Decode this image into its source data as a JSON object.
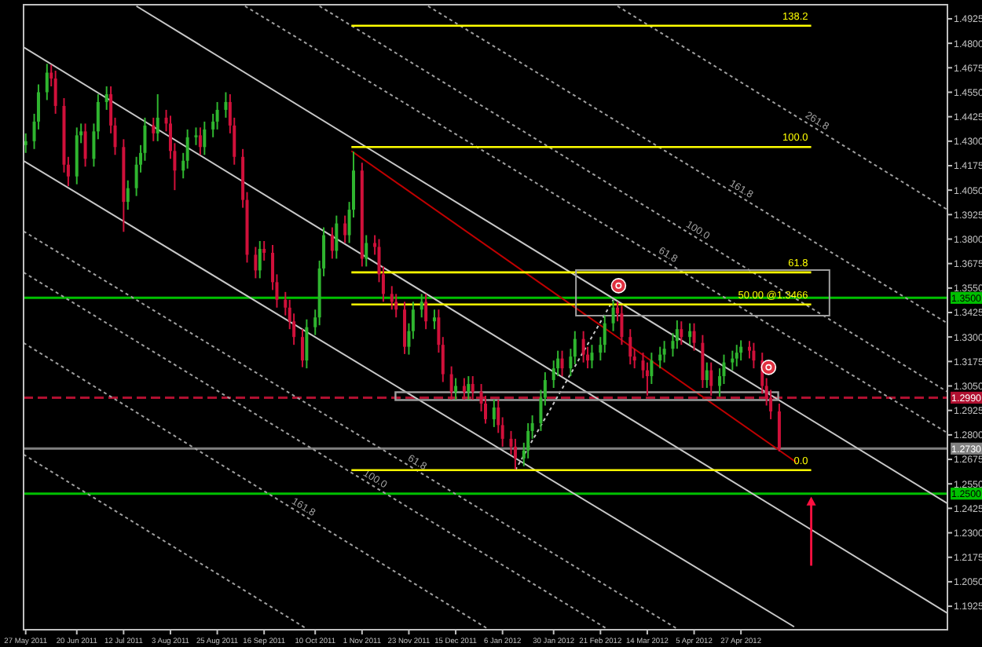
{
  "chart_data": {
    "type": "candlestick",
    "colors": [
      "#2fb52f",
      "#2fb52f",
      "#2fb52f",
      "#2fb52f",
      "#d0103a",
      "#d0103a",
      "#d0103a",
      "#d0103a",
      "#2fb52f",
      "#2fb52f",
      "#d0103a",
      "#2fb52f",
      "#2fb52f",
      "#2fb52f",
      "#d0103a",
      "#d0103a",
      "#d0103a",
      "#2fb52f",
      "#2fb52f",
      "#2fb52f",
      "#2fb52f",
      "#d0103a",
      "#2fb52f",
      "#d0103a",
      "#d0103a",
      "#d0103a",
      "#2fb52f",
      "#2fb52f",
      "#2fb52f",
      "#d0103a",
      "#2fb52f",
      "#2fb52f",
      "#2fb52f",
      "#2fb52f",
      "#d0103a",
      "#d0103a",
      "#d0103a",
      "#d0103a",
      "#d0103a",
      "#2fb52f",
      "#d0103a",
      "#d0103a",
      "#d0103a",
      "#d0103a",
      "#d0103a",
      "#d0103a",
      "#d0103a",
      "#2fb52f",
      "#2fb52f",
      "#2fb52f",
      "#2fb52f",
      "#d0103a",
      "#2fb52f",
      "#d0103a",
      "#2fb52f",
      "#2fb52f",
      "#d0103a",
      "#2fb52f",
      "#d0103a",
      "#d0103a",
      "#d0103a",
      "#d0103a",
      "#d0103a",
      "#d0103a",
      "#2fb52f",
      "#2fb52f",
      "#2fb52f",
      "#d0103a",
      "#2fb52f",
      "#d0103a",
      "#d0103a",
      "#d0103a",
      "#2fb52f",
      "#d0103a",
      "#2fb52f",
      "#d0103a",
      "#d0103a",
      "#d0103a",
      "#2fb52f",
      "#d0103a",
      "#d0103a",
      "#d0103a",
      "#d0103a",
      "#2fb52f",
      "#2fb52f",
      "#2fb52f",
      "#2fb52f",
      "#2fb52f",
      "#2fb52f",
      "#2fb52f",
      "#d0103a",
      "#2fb52f",
      "#2fb52f",
      "#d0103a",
      "#d0103a",
      "#2fb52f",
      "#2fb52f",
      "#2fb52f",
      "#2fb52f",
      "#d0103a",
      "#d0103a",
      "#d0103a",
      "#d0103a",
      "#d0103a",
      "#d0103a",
      "#2fb52f",
      "#2fb52f",
      "#2fb52f",
      "#2fb52f",
      "#2fb52f",
      "#d0103a",
      "#2fb52f",
      "#d0103a",
      "#d0103a",
      "#2fb52f",
      "#d0103a",
      "#2fb52f",
      "#2fb52f",
      "#2fb52f",
      "#2fb52f",
      "#2fb52f",
      "#d0103a",
      "#d0103a",
      "#d0103a",
      "#d0103a",
      "#d0103a",
      "#d0103a"
    ],
    "xlim": [
      "2011-05-26",
      "2012-08-02"
    ],
    "ylim": [
      1.1805,
      1.4997
    ],
    "xticks": [
      {
        "value": "2011-05-27",
        "label": "27 May 2011"
      },
      {
        "value": "2011-06-20",
        "label": "20 Jun 2011"
      },
      {
        "value": "2011-07-12",
        "label": "12 Jul 2011"
      },
      {
        "value": "2011-08-03",
        "label": "3 Aug 2011"
      },
      {
        "value": "2011-08-25",
        "label": "25 Aug 2011"
      },
      {
        "value": "2011-09-16",
        "label": "16 Sep 2011"
      },
      {
        "value": "2011-10-10",
        "label": "10 Oct 2011"
      },
      {
        "value": "2011-11-01",
        "label": "1 Nov 2011"
      },
      {
        "value": "2011-11-23",
        "label": "23 Nov 2011"
      },
      {
        "value": "2011-12-15",
        "label": "15 Dec 2011"
      },
      {
        "value": "2012-01-06",
        "label": "6 Jan 2012"
      },
      {
        "value": "2012-01-30",
        "label": "30 Jan 2012"
      },
      {
        "value": "2012-02-21",
        "label": "21 Feb 2012"
      },
      {
        "value": "2012-03-14",
        "label": "14 Mar 2012"
      },
      {
        "value": "2012-04-05",
        "label": "5 Apr 2012"
      },
      {
        "value": "2012-04-27",
        "label": "27 Apr 2012"
      }
    ],
    "yticks": [
      1.4925,
      {
        "value": 1.48,
        "label": "1.4800"
      },
      1.4675,
      {
        "value": 1.455,
        "label": "1.4550"
      },
      1.4425,
      {
        "value": 1.43,
        "label": "1.4300"
      },
      1.4175,
      {
        "value": 1.405,
        "label": "1.4050"
      },
      1.3925,
      {
        "value": 1.38,
        "label": "1.3800"
      },
      1.3675,
      {
        "value": 1.355,
        "label": "1.3550"
      },
      1.3425,
      {
        "value": 1.33,
        "label": "1.3300"
      },
      1.3175,
      {
        "value": 1.305,
        "label": "1.3050"
      },
      1.2925,
      {
        "value": 1.28,
        "label": "1.2800"
      },
      1.2675,
      {
        "value": 1.255,
        "label": "1.2550"
      },
      1.2425,
      {
        "value": 1.23,
        "label": "1.2300"
      },
      1.2175,
      {
        "value": 1.205,
        "label": "1.2050"
      },
      1.1925
    ],
    "ref_lines": [
      {
        "axis": "y",
        "value": 1.35,
        "label": "1.3500",
        "color": "#00c000"
      },
      {
        "axis": "y",
        "value": 1.25,
        "label": "1.2500",
        "color": "#00c000"
      },
      {
        "axis": "y",
        "value": 1.299,
        "label": "1.2990",
        "color": "#b01030",
        "line_style": "dashed"
      },
      {
        "axis": "y",
        "value": 1.273,
        "label": "1.2730",
        "color": "#808080"
      }
    ],
    "x": [
      "2011-05-27",
      "2011-05-31",
      "2011-06-02",
      "2011-06-06",
      "2011-06-08",
      "2011-06-10",
      "2011-06-14",
      "2011-06-16",
      "2011-06-20",
      "2011-06-22",
      "2011-06-24",
      "2011-06-28",
      "2011-06-30",
      "2011-07-04",
      "2011-07-06",
      "2011-07-08",
      "2011-07-12",
      "2011-07-14",
      "2011-07-18",
      "2011-07-20",
      "2011-07-22",
      "2011-07-26",
      "2011-07-28",
      "2011-08-01",
      "2011-08-03",
      "2011-08-05",
      "2011-08-09",
      "2011-08-11",
      "2011-08-15",
      "2011-08-17",
      "2011-08-19",
      "2011-08-23",
      "2011-08-25",
      "2011-08-29",
      "2011-08-31",
      "2011-09-02",
      "2011-09-06",
      "2011-09-08",
      "2011-09-12",
      "2011-09-14",
      "2011-09-16",
      "2011-09-20",
      "2011-09-22",
      "2011-09-26",
      "2011-09-28",
      "2011-09-30",
      "2011-10-04",
      "2011-10-06",
      "2011-10-10",
      "2011-10-12",
      "2011-10-14",
      "2011-10-18",
      "2011-10-20",
      "2011-10-24",
      "2011-10-26",
      "2011-10-28",
      "2011-11-01",
      "2011-11-03",
      "2011-11-07",
      "2011-11-09",
      "2011-11-11",
      "2011-11-15",
      "2011-11-17",
      "2011-11-21",
      "2011-11-23",
      "2011-11-25",
      "2011-11-29",
      "2011-12-01",
      "2011-12-05",
      "2011-12-07",
      "2011-12-09",
      "2011-12-13",
      "2011-12-15",
      "2011-12-19",
      "2011-12-21",
      "2011-12-23",
      "2011-12-27",
      "2011-12-29",
      "2012-01-02",
      "2012-01-04",
      "2012-01-06",
      "2012-01-10",
      "2012-01-12",
      "2012-01-16",
      "2012-01-18",
      "2012-01-20",
      "2012-01-24",
      "2012-01-26",
      "2012-01-30",
      "2012-02-01",
      "2012-02-03",
      "2012-02-07",
      "2012-02-09",
      "2012-02-13",
      "2012-02-15",
      "2012-02-17",
      "2012-02-21",
      "2012-02-23",
      "2012-02-27",
      "2012-02-29",
      "2012-03-02",
      "2012-03-06",
      "2012-03-08",
      "2012-03-12",
      "2012-03-14",
      "2012-03-16",
      "2012-03-20",
      "2012-03-22",
      "2012-03-26",
      "2012-03-28",
      "2012-03-30",
      "2012-04-03",
      "2012-04-05",
      "2012-04-09",
      "2012-04-11",
      "2012-04-13",
      "2012-04-17",
      "2012-04-19",
      "2012-04-23",
      "2012-04-25",
      "2012-04-27",
      "2012-05-01",
      "2012-05-03",
      "2012-05-07",
      "2012-05-09",
      "2012-05-11",
      "2012-05-15"
    ],
    "ohlc": [
      [
        1.428,
        1.434,
        1.424,
        1.43
      ],
      [
        1.43,
        1.444,
        1.426,
        1.44
      ],
      [
        1.44,
        1.459,
        1.436,
        1.455
      ],
      [
        1.455,
        1.4695,
        1.451,
        1.465
      ],
      [
        1.465,
        1.469,
        1.458,
        1.462
      ],
      [
        1.462,
        1.466,
        1.444,
        1.448
      ],
      [
        1.448,
        1.452,
        1.414,
        1.418
      ],
      [
        1.418,
        1.422,
        1.407,
        1.412
      ],
      [
        1.412,
        1.437,
        1.408,
        1.433
      ],
      [
        1.433,
        1.439,
        1.429,
        1.435
      ],
      [
        1.435,
        1.439,
        1.417,
        1.421
      ],
      [
        1.421,
        1.439,
        1.417,
        1.435
      ],
      [
        1.435,
        1.454,
        1.431,
        1.45
      ],
      [
        1.45,
        1.458,
        1.446,
        1.454
      ],
      [
        1.454,
        1.458,
        1.434,
        1.438
      ],
      [
        1.438,
        1.442,
        1.423,
        1.427
      ],
      [
        1.427,
        1.431,
        1.3837,
        1.399
      ],
      [
        1.399,
        1.41,
        1.395,
        1.406
      ],
      [
        1.406,
        1.422,
        1.402,
        1.418
      ],
      [
        1.418,
        1.428,
        1.414,
        1.424
      ],
      [
        1.424,
        1.442,
        1.42,
        1.438
      ],
      [
        1.438,
        1.442,
        1.43,
        1.434
      ],
      [
        1.434,
        1.454,
        1.43,
        1.442
      ],
      [
        1.442,
        1.446,
        1.435,
        1.439
      ],
      [
        1.439,
        1.443,
        1.421,
        1.425
      ],
      [
        1.425,
        1.429,
        1.405,
        1.415
      ],
      [
        1.415,
        1.424,
        1.411,
        1.42
      ],
      [
        1.42,
        1.436,
        1.416,
        1.432
      ],
      [
        1.432,
        1.437,
        1.428,
        1.433
      ],
      [
        1.433,
        1.437,
        1.423,
        1.427
      ],
      [
        1.427,
        1.44,
        1.423,
        1.436
      ],
      [
        1.436,
        1.444,
        1.432,
        1.44
      ],
      [
        1.44,
        1.45,
        1.436,
        1.446
      ],
      [
        1.446,
        1.455,
        1.442,
        1.45
      ],
      [
        1.45,
        1.454,
        1.434,
        1.438
      ],
      [
        1.438,
        1.442,
        1.418,
        1.422
      ],
      [
        1.422,
        1.426,
        1.396,
        1.4
      ],
      [
        1.4,
        1.404,
        1.368,
        1.372
      ],
      [
        1.372,
        1.376,
        1.36,
        1.364
      ],
      [
        1.364,
        1.379,
        1.36,
        1.375
      ],
      [
        1.375,
        1.379,
        1.369,
        1.373
      ],
      [
        1.373,
        1.377,
        1.354,
        1.358
      ],
      [
        1.358,
        1.362,
        1.345,
        1.349
      ],
      [
        1.349,
        1.353,
        1.341,
        1.345
      ],
      [
        1.345,
        1.349,
        1.334,
        1.338
      ],
      [
        1.338,
        1.342,
        1.326,
        1.33
      ],
      [
        1.33,
        1.334,
        1.3146,
        1.318
      ],
      [
        1.318,
        1.339,
        1.314,
        1.335
      ],
      [
        1.335,
        1.344,
        1.331,
        1.34
      ],
      [
        1.34,
        1.369,
        1.336,
        1.365
      ],
      [
        1.365,
        1.386,
        1.361,
        1.382
      ],
      [
        1.382,
        1.386,
        1.37,
        1.374
      ],
      [
        1.374,
        1.392,
        1.37,
        1.388
      ],
      [
        1.388,
        1.392,
        1.378,
        1.382
      ],
      [
        1.382,
        1.399,
        1.378,
        1.395
      ],
      [
        1.395,
        1.4247,
        1.391,
        1.415
      ],
      [
        1.415,
        1.419,
        1.366,
        1.37
      ],
      [
        1.37,
        1.382,
        1.366,
        1.378
      ],
      [
        1.378,
        1.382,
        1.372,
        1.376
      ],
      [
        1.376,
        1.38,
        1.358,
        1.362
      ],
      [
        1.362,
        1.366,
        1.348,
        1.352
      ],
      [
        1.352,
        1.356,
        1.344,
        1.348
      ],
      [
        1.348,
        1.352,
        1.34,
        1.344
      ],
      [
        1.344,
        1.348,
        1.3213,
        1.325
      ],
      [
        1.325,
        1.337,
        1.321,
        1.333
      ],
      [
        1.333,
        1.348,
        1.329,
        1.344
      ],
      [
        1.344,
        1.352,
        1.34,
        1.348
      ],
      [
        1.348,
        1.352,
        1.334,
        1.338
      ],
      [
        1.338,
        1.344,
        1.334,
        1.34
      ],
      [
        1.34,
        1.344,
        1.322,
        1.326
      ],
      [
        1.326,
        1.33,
        1.307,
        1.311
      ],
      [
        1.311,
        1.315,
        1.298,
        1.302
      ],
      [
        1.302,
        1.309,
        1.298,
        1.305
      ],
      [
        1.305,
        1.309,
        1.298,
        1.302
      ],
      [
        1.302,
        1.31,
        1.298,
        1.306
      ],
      [
        1.306,
        1.31,
        1.298,
        1.302
      ],
      [
        1.302,
        1.306,
        1.292,
        1.296
      ],
      [
        1.296,
        1.3,
        1.2858,
        1.288
      ],
      [
        1.288,
        1.298,
        1.284,
        1.294
      ],
      [
        1.294,
        1.298,
        1.281,
        1.285
      ],
      [
        1.285,
        1.289,
        1.274,
        1.278
      ],
      [
        1.278,
        1.282,
        1.27,
        1.274
      ],
      [
        1.274,
        1.278,
        1.2624,
        1.268
      ],
      [
        1.268,
        1.276,
        1.264,
        1.272
      ],
      [
        1.272,
        1.286,
        1.268,
        1.282
      ],
      [
        1.282,
        1.29,
        1.278,
        1.286
      ],
      [
        1.286,
        1.303,
        1.282,
        1.299
      ],
      [
        1.299,
        1.312,
        1.295,
        1.308
      ],
      [
        1.308,
        1.318,
        1.304,
        1.314
      ],
      [
        1.314,
        1.323,
        1.31,
        1.319
      ],
      [
        1.319,
        1.323,
        1.31,
        1.314
      ],
      [
        1.314,
        1.324,
        1.31,
        1.32
      ],
      [
        1.32,
        1.333,
        1.316,
        1.329
      ],
      [
        1.329,
        1.333,
        1.317,
        1.321
      ],
      [
        1.321,
        1.325,
        1.314,
        1.318
      ],
      [
        1.318,
        1.326,
        1.314,
        1.322
      ],
      [
        1.322,
        1.33,
        1.318,
        1.326
      ],
      [
        1.326,
        1.341,
        1.322,
        1.337
      ],
      [
        1.337,
        1.3486,
        1.333,
        1.345
      ],
      [
        1.345,
        1.348,
        1.338,
        1.342
      ],
      [
        1.342,
        1.346,
        1.326,
        1.33
      ],
      [
        1.33,
        1.334,
        1.316,
        1.32
      ],
      [
        1.32,
        1.324,
        1.314,
        1.318
      ],
      [
        1.318,
        1.322,
        1.309,
        1.313
      ],
      [
        1.313,
        1.317,
        1.3,
        1.31
      ],
      [
        1.31,
        1.322,
        1.306,
        1.318
      ],
      [
        1.318,
        1.325,
        1.314,
        1.321
      ],
      [
        1.321,
        1.328,
        1.317,
        1.324
      ],
      [
        1.324,
        1.332,
        1.32,
        1.328
      ],
      [
        1.328,
        1.3385,
        1.324,
        1.334
      ],
      [
        1.334,
        1.338,
        1.326,
        1.33
      ],
      [
        1.33,
        1.337,
        1.326,
        1.333
      ],
      [
        1.333,
        1.337,
        1.323,
        1.327
      ],
      [
        1.327,
        1.331,
        1.304,
        1.308
      ],
      [
        1.308,
        1.317,
        1.304,
        1.313
      ],
      [
        1.313,
        1.317,
        1.3,
        1.305
      ],
      [
        1.305,
        1.314,
        1.2995,
        1.31
      ],
      [
        1.31,
        1.321,
        1.306,
        1.317
      ],
      [
        1.317,
        1.323,
        1.313,
        1.319
      ],
      [
        1.319,
        1.326,
        1.315,
        1.322
      ],
      [
        1.322,
        1.3283,
        1.318,
        1.325
      ],
      [
        1.325,
        1.328,
        1.319,
        1.323
      ],
      [
        1.323,
        1.327,
        1.314,
        1.318
      ],
      [
        1.318,
        1.322,
        1.301,
        1.305
      ],
      [
        1.305,
        1.309,
        1.295,
        1.299
      ],
      [
        1.299,
        1.303,
        1.288,
        1.292
      ],
      [
        1.292,
        1.296,
        1.2715,
        1.273
      ]
    ],
    "series": [
      {
        "type": "line",
        "color": "#c8c8c8",
        "x": [
          "2011-07-18",
          "2012-08-02"
        ],
        "values": [
          1.499,
          1.245
        ]
      },
      {
        "type": "line",
        "color": "#c8c8c8",
        "x": [
          "2011-05-26",
          "2012-08-02"
        ],
        "values": [
          1.478,
          1.189
        ]
      },
      {
        "type": "line",
        "color": "#c8c8c8",
        "x": [
          "2011-05-26",
          "2012-05-22"
        ],
        "values": [
          1.42,
          1.182
        ]
      },
      {
        "type": "line",
        "name": "61.8",
        "color": "#a0a0a0",
        "line_style": "dotted",
        "x": [
          "2011-09-07",
          "2012-08-02"
        ],
        "values": [
          1.499,
          1.281
        ]
      },
      {
        "type": "line",
        "name": "100.0",
        "color": "#a0a0a0",
        "line_style": "dotted",
        "x": [
          "2011-10-12",
          "2012-08-02"
        ],
        "values": [
          1.499,
          1.302
        ]
      },
      {
        "type": "line",
        "name": "161.8",
        "color": "#a0a0a0",
        "line_style": "dotted",
        "x": [
          "2011-12-02",
          "2012-08-02"
        ],
        "values": [
          1.499,
          1.337
        ]
      },
      {
        "type": "line",
        "name": "261.8",
        "color": "#a0a0a0",
        "line_style": "dotted",
        "x": [
          "2012-02-29",
          "2012-08-02"
        ],
        "values": [
          1.499,
          1.395
        ]
      },
      {
        "type": "line",
        "name": "61.8",
        "color": "#a0a0a0",
        "line_style": "dotted",
        "x": [
          "2011-05-26",
          "2012-03-28"
        ],
        "values": [
          1.384,
          1.181
        ]
      },
      {
        "type": "line",
        "name": "100.0",
        "color": "#a0a0a0",
        "line_style": "dotted",
        "x": [
          "2011-05-26",
          "2012-02-24"
        ],
        "values": [
          1.363,
          1.181
        ]
      },
      {
        "type": "line",
        "name": "161.8",
        "color": "#a0a0a0",
        "line_style": "dotted",
        "x": [
          "2011-05-26",
          "2011-12-30"
        ],
        "values": [
          1.327,
          1.181
        ]
      },
      {
        "type": "line",
        "color": "#a0a0a0",
        "line_style": "dotted",
        "x": [
          "2011-05-26",
          "2011-10-06"
        ],
        "values": [
          1.27,
          1.181
        ]
      },
      {
        "type": "line",
        "color": "#c00000",
        "x": [
          "2011-10-27",
          "2012-05-23"
        ],
        "values": [
          1.425,
          1.266
        ]
      },
      {
        "type": "line",
        "color": "#c8c8c8",
        "line_style": "dotted",
        "x": [
          "2012-01-12",
          "2012-02-27"
        ],
        "values": [
          1.262,
          1.349
        ]
      },
      {
        "type": "line",
        "name": "138.2",
        "color": "#ffff00",
        "x": [
          "2011-10-27",
          "2012-05-30"
        ],
        "values": [
          1.489,
          1.489
        ]
      },
      {
        "type": "line",
        "name": "100.0",
        "color": "#ffff00",
        "x": [
          "2011-10-27",
          "2012-05-30"
        ],
        "values": [
          1.427,
          1.427
        ]
      },
      {
        "type": "line",
        "name": "61.8",
        "color": "#ffff00",
        "x": [
          "2011-10-27",
          "2012-05-30"
        ],
        "values": [
          1.363,
          1.363
        ]
      },
      {
        "type": "line",
        "name": "50.00 @1.3466",
        "color": "#ffff00",
        "x": [
          "2011-10-27",
          "2012-05-30"
        ],
        "values": [
          1.3466,
          1.3466
        ]
      },
      {
        "type": "line",
        "name": "0.0",
        "color": "#ffff00",
        "x": [
          "2011-10-27",
          "2012-05-30"
        ],
        "values": [
          1.262,
          1.262
        ]
      }
    ]
  }
}
